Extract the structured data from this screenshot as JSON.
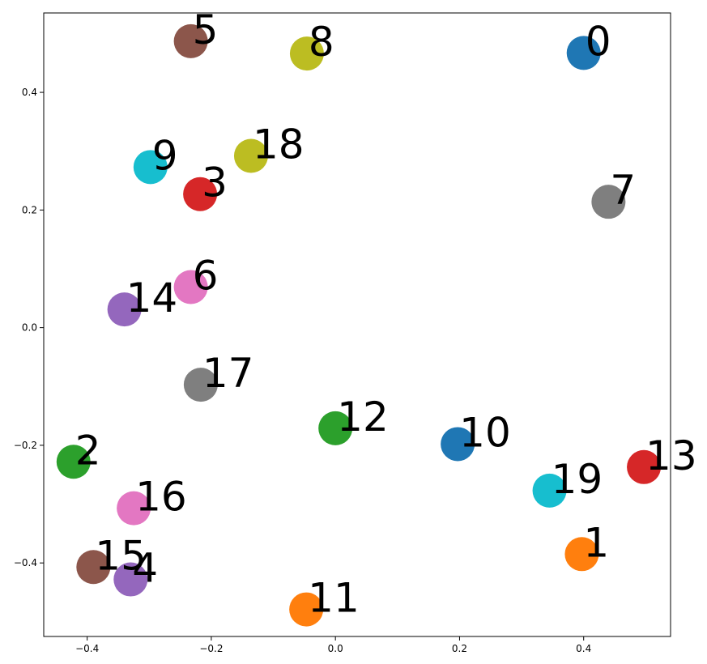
{
  "chart_data": {
    "type": "scatter",
    "title": "",
    "xlabel": "",
    "ylabel": "",
    "xlim": [
      -0.47,
      0.54
    ],
    "ylim": [
      -0.525,
      0.535
    ],
    "xticks": [
      -0.4,
      -0.2,
      0.0,
      0.2,
      0.4
    ],
    "xtick_labels": [
      "−0.4",
      "−0.2",
      "0.0",
      "0.2",
      "0.4"
    ],
    "yticks": [
      -0.4,
      -0.2,
      0.0,
      0.2,
      0.4
    ],
    "ytick_labels": [
      "−0.4",
      "−0.2",
      "0.0",
      "0.2",
      "0.4"
    ],
    "grid": false,
    "points": [
      {
        "label": "0",
        "x": 0.4,
        "y": 0.467,
        "color": "#1f77b4"
      },
      {
        "label": "1",
        "x": 0.397,
        "y": -0.385,
        "color": "#ff7f0e"
      },
      {
        "label": "2",
        "x": -0.422,
        "y": -0.228,
        "color": "#2ca02c"
      },
      {
        "label": "3",
        "x": -0.218,
        "y": 0.227,
        "color": "#d62728"
      },
      {
        "label": "4",
        "x": -0.33,
        "y": -0.428,
        "color": "#9467bd"
      },
      {
        "label": "5",
        "x": -0.233,
        "y": 0.487,
        "color": "#8c564b"
      },
      {
        "label": "6",
        "x": -0.233,
        "y": 0.069,
        "color": "#e377c2"
      },
      {
        "label": "7",
        "x": 0.44,
        "y": 0.214,
        "color": "#7f7f7f"
      },
      {
        "label": "8",
        "x": -0.046,
        "y": 0.466,
        "color": "#bcbd22"
      },
      {
        "label": "9",
        "x": -0.298,
        "y": 0.273,
        "color": "#17becf"
      },
      {
        "label": "10",
        "x": 0.197,
        "y": -0.198,
        "color": "#1f77b4"
      },
      {
        "label": "11",
        "x": -0.047,
        "y": -0.479,
        "color": "#ff7f0e"
      },
      {
        "label": "12",
        "x": 0.0,
        "y": -0.171,
        "color": "#2ca02c"
      },
      {
        "label": "13",
        "x": 0.497,
        "y": -0.237,
        "color": "#d62728"
      },
      {
        "label": "14",
        "x": -0.34,
        "y": 0.031,
        "color": "#9467bd"
      },
      {
        "label": "15",
        "x": -0.39,
        "y": -0.407,
        "color": "#8c564b"
      },
      {
        "label": "16",
        "x": -0.325,
        "y": -0.307,
        "color": "#e377c2"
      },
      {
        "label": "17",
        "x": -0.217,
        "y": -0.097,
        "color": "#7f7f7f"
      },
      {
        "label": "18",
        "x": -0.136,
        "y": 0.292,
        "color": "#bcbd22"
      },
      {
        "label": "19",
        "x": 0.345,
        "y": -0.277,
        "color": "#17becf"
      }
    ]
  }
}
